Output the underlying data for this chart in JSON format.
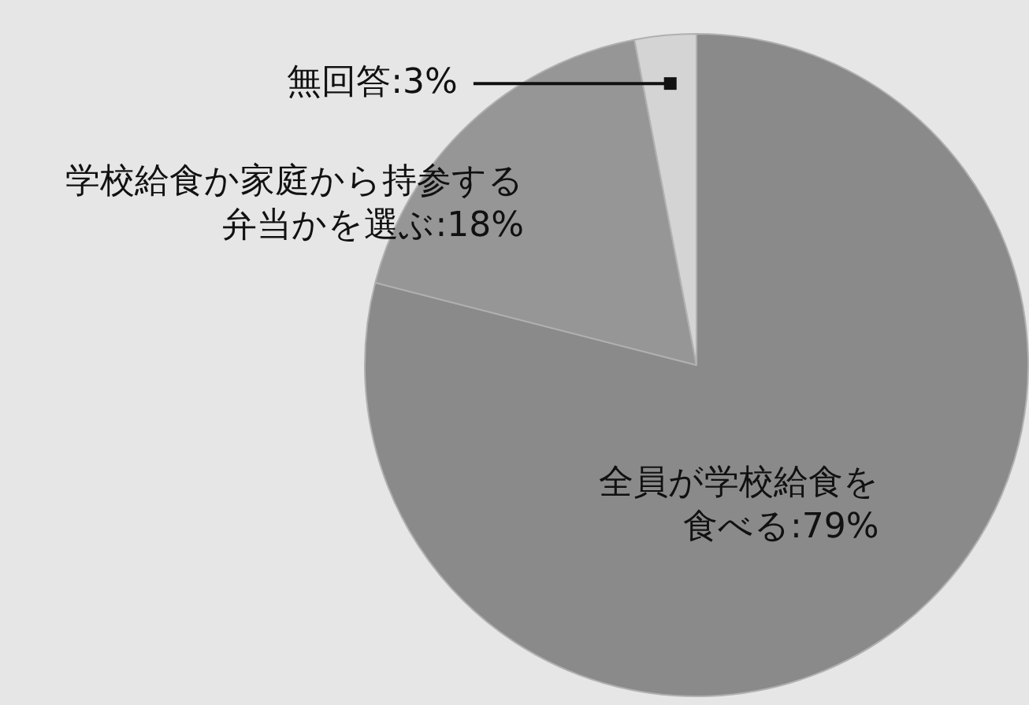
{
  "chart_data": {
    "type": "pie",
    "categories": [
      "全員が学校給食を食べる",
      "学校給食か家庭から持参する弁当かを選ぶ",
      "無回答"
    ],
    "values": [
      79,
      18,
      3
    ],
    "colors": [
      "#8a8a8a",
      "#969696",
      "#d4d4d4"
    ],
    "value_labels": [
      "79%",
      "18%",
      "3%"
    ],
    "legend": false
  }
}
